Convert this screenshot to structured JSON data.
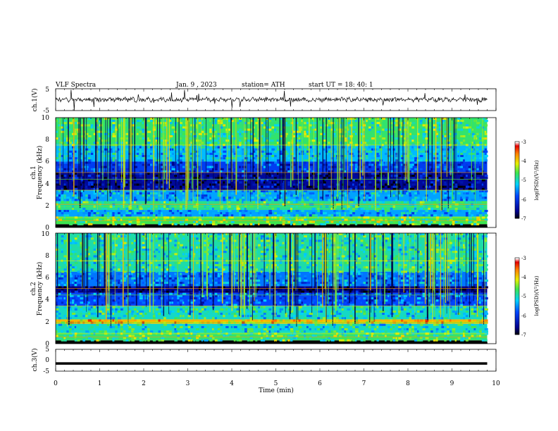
{
  "header": {
    "title": "VLF  Spectra",
    "date": "Jan.  9  , 2023",
    "station": "station= ATH",
    "start_ut": "start  UT  =   18: 40: 1"
  },
  "chart_data": [
    {
      "type": "line",
      "ylabel": "ch.1(V)",
      "ylim": [
        -5,
        5
      ],
      "yticks": [
        "5",
        "-5"
      ],
      "xlim": [
        0,
        10
      ],
      "series": [
        {
          "mean": 0,
          "amplitude_approx": 1.2,
          "spikes": true
        }
      ]
    },
    {
      "type": "heatmap",
      "ylabel": "Frequency  (kHz)",
      "ylabel2": "ch.1",
      "ylim": [
        0,
        10
      ],
      "yticks": [
        "0",
        "2",
        "4",
        "6",
        "8",
        "10"
      ],
      "xlim": [
        0,
        10
      ],
      "data_extent_min": 9.8,
      "colorbar": {
        "label": "log(PSD)(V²/Hz)",
        "range": [
          -7,
          -3
        ],
        "ticks": [
          "-3",
          "-4",
          "-5",
          "-6",
          "-7"
        ]
      },
      "bands": [
        {
          "from": 0,
          "to": 0.3,
          "level": -7.0
        },
        {
          "from": 0.3,
          "to": 1.0,
          "level": -4.6
        },
        {
          "from": 1.0,
          "to": 1.6,
          "level": -5.4
        },
        {
          "from": 1.6,
          "to": 2.4,
          "level": -4.8
        },
        {
          "from": 2.4,
          "to": 3.4,
          "level": -5.4
        },
        {
          "from": 3.4,
          "to": 5.0,
          "level": -6.5
        },
        {
          "from": 5.0,
          "to": 6.0,
          "level": -5.9
        },
        {
          "from": 6.0,
          "to": 7.5,
          "level": -5.3
        },
        {
          "from": 7.5,
          "to": 10.0,
          "level": -4.7
        }
      ]
    },
    {
      "type": "heatmap",
      "ylabel": "Frequency  (kHz)",
      "ylabel2": "ch.2",
      "ylim": [
        0,
        10
      ],
      "yticks": [
        "0",
        "2",
        "4",
        "6",
        "8",
        "10"
      ],
      "xlim": [
        0,
        10
      ],
      "data_extent_min": 9.8,
      "colorbar": {
        "label": "log(PSD)(V²/Hz)",
        "range": [
          -7,
          -3
        ],
        "ticks": [
          "-3",
          "-4",
          "-5",
          "-6",
          "-7"
        ]
      },
      "bands": [
        {
          "from": 0,
          "to": 0.3,
          "level": -7.0
        },
        {
          "from": 0.3,
          "to": 1.0,
          "level": -4.7
        },
        {
          "from": 1.0,
          "to": 1.8,
          "level": -5.0
        },
        {
          "from": 1.8,
          "to": 2.2,
          "level": -3.9
        },
        {
          "from": 2.2,
          "to": 3.4,
          "level": -5.0
        },
        {
          "from": 3.4,
          "to": 4.6,
          "level": -5.8
        },
        {
          "from": 4.6,
          "to": 5.2,
          "level": -6.6
        },
        {
          "from": 5.2,
          "to": 6.5,
          "level": -5.6
        },
        {
          "from": 6.5,
          "to": 10.0,
          "level": -4.9
        }
      ]
    },
    {
      "type": "line",
      "ylabel": "ch.3(V)",
      "ylim": [
        -5,
        5
      ],
      "yticks": [
        "5",
        "0",
        "-5"
      ],
      "xlim": [
        0,
        10
      ],
      "xlabel": "Time  (min)",
      "xticks": [
        "0",
        "1",
        "2",
        "3",
        "4",
        "5",
        "6",
        "7",
        "8",
        "9",
        "10"
      ],
      "series": [
        {
          "constant": -1.5
        }
      ]
    }
  ]
}
